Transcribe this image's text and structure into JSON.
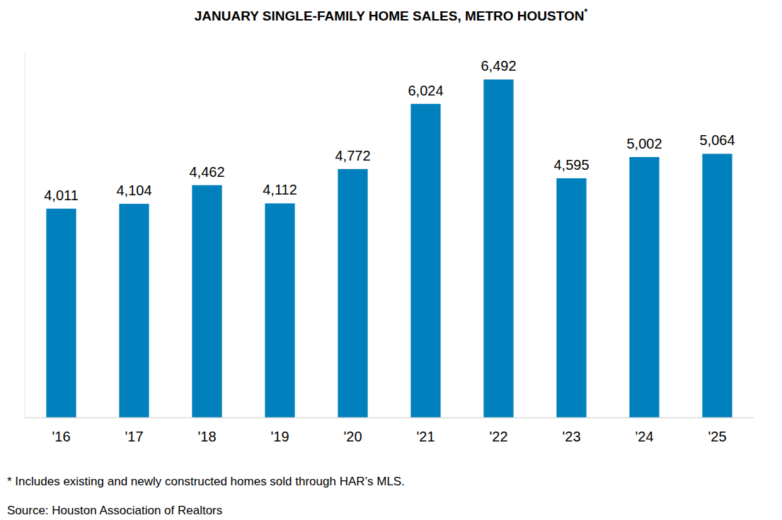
{
  "chart_data": {
    "type": "bar",
    "title": "JANUARY SINGLE-FAMILY HOME SALES, METRO HOUSTON*",
    "categories": [
      "'16",
      "'17",
      "'18",
      "'19",
      "'20",
      "'21",
      "'22",
      "'23",
      "'24",
      "'25"
    ],
    "values": [
      4011,
      4104,
      4462,
      4112,
      4772,
      6024,
      6492,
      4595,
      5002,
      5064
    ],
    "value_labels": [
      "4,011",
      "4,104",
      "4,462",
      "4,112",
      "4,772",
      "6,024",
      "6,492",
      "4,595",
      "5,002",
      "5,064"
    ],
    "color": "#0080bd",
    "ylim": [
      0,
      7000
    ],
    "data_labels": true,
    "tick_labels": "x",
    "annotations": [
      "* Includes existing and newly constructed homes sold through HAR’s MLS.",
      "Source: Houston Association of Realtors"
    ]
  }
}
